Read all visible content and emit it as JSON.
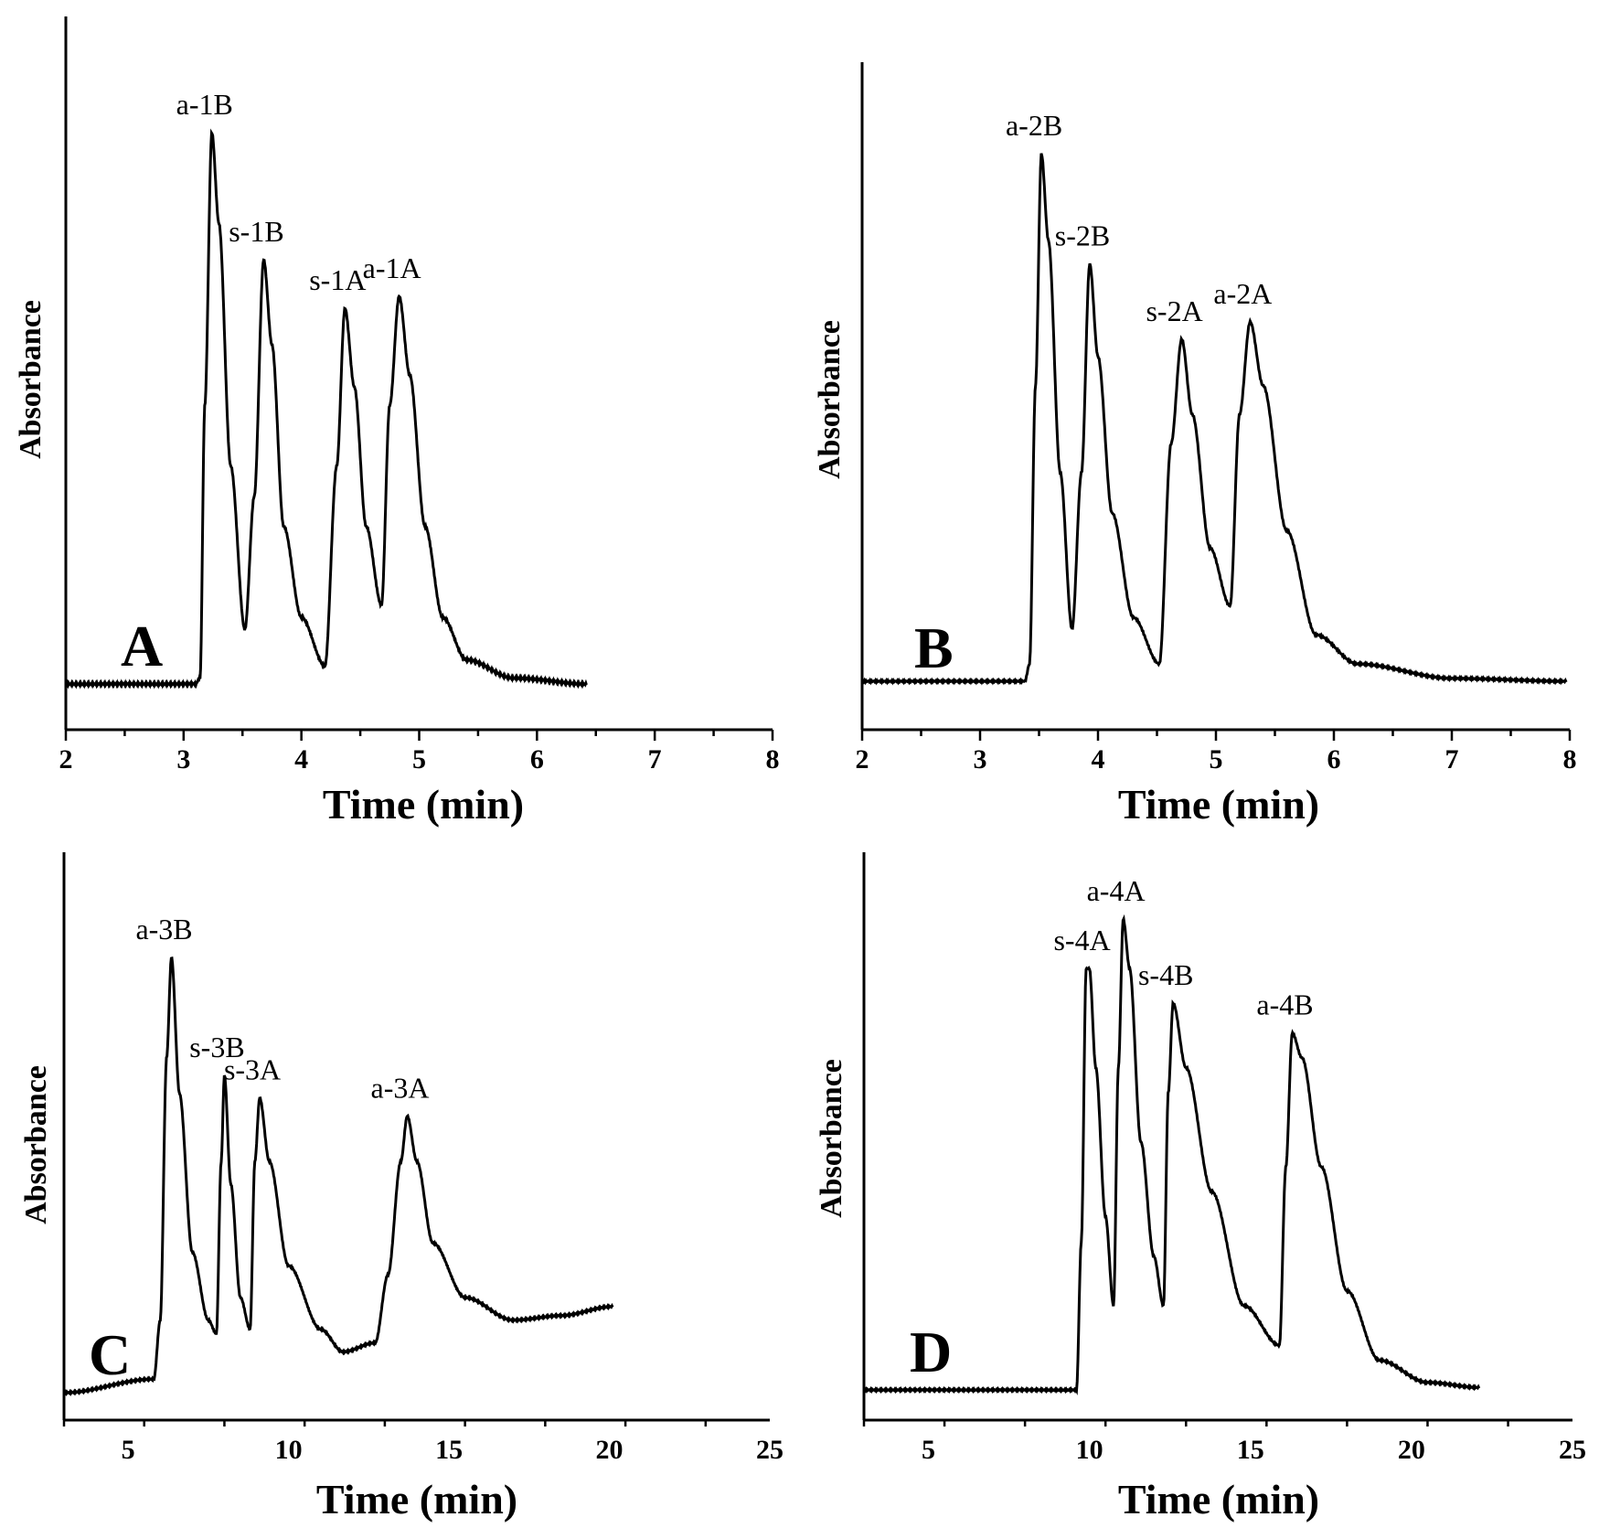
{
  "chart_data": [
    {
      "panel": "A",
      "type": "line",
      "xlabel": "Time (min)",
      "ylabel": "Absorbance",
      "xlim": [
        2,
        8
      ],
      "xticks": [
        2,
        3,
        4,
        5,
        6,
        7,
        8
      ],
      "ylim": [
        0,
        1
      ],
      "x_end": 6.42,
      "baseline": 0.09,
      "segments": [
        {
          "t": 2.0,
          "v": 0.09
        },
        {
          "t": 3.1,
          "v": 0.09
        },
        {
          "t": 3.14,
          "v": 0.1
        },
        {
          "t": 3.18,
          "v": 0.55
        },
        {
          "t": 3.24,
          "v": 1.0
        },
        {
          "t": 3.3,
          "v": 0.85
        },
        {
          "t": 3.4,
          "v": 0.45
        },
        {
          "t": 3.52,
          "v": 0.18
        },
        {
          "t": 3.6,
          "v": 0.4
        },
        {
          "t": 3.68,
          "v": 0.79
        },
        {
          "t": 3.75,
          "v": 0.65
        },
        {
          "t": 3.85,
          "v": 0.35
        },
        {
          "t": 4.0,
          "v": 0.2
        },
        {
          "t": 4.2,
          "v": 0.12
        },
        {
          "t": 4.3,
          "v": 0.45
        },
        {
          "t": 4.37,
          "v": 0.71
        },
        {
          "t": 4.45,
          "v": 0.58
        },
        {
          "t": 4.55,
          "v": 0.35
        },
        {
          "t": 4.68,
          "v": 0.22
        },
        {
          "t": 4.75,
          "v": 0.55
        },
        {
          "t": 4.83,
          "v": 0.73
        },
        {
          "t": 4.92,
          "v": 0.6
        },
        {
          "t": 5.05,
          "v": 0.35
        },
        {
          "t": 5.2,
          "v": 0.2
        },
        {
          "t": 5.4,
          "v": 0.13
        },
        {
          "t": 5.8,
          "v": 0.1
        },
        {
          "t": 6.42,
          "v": 0.09
        }
      ],
      "peaks": [
        {
          "label": "a-1B",
          "t": 3.24,
          "v": 1.0
        },
        {
          "label": "s-1B",
          "t": 3.68,
          "v": 0.79
        },
        {
          "label": "s-1A",
          "t": 4.37,
          "v": 0.71
        },
        {
          "label": "a-1A",
          "t": 4.83,
          "v": 0.73
        }
      ]
    },
    {
      "panel": "B",
      "type": "line",
      "xlabel": "Time (min)",
      "ylabel": "Absorbance",
      "xlim": [
        2,
        8
      ],
      "xticks": [
        2,
        3,
        4,
        5,
        6,
        7,
        8
      ],
      "ylim": [
        0,
        1
      ],
      "x_end": 7.97,
      "baseline": 0.09,
      "segments": [
        {
          "t": 2.0,
          "v": 0.09
        },
        {
          "t": 3.38,
          "v": 0.09
        },
        {
          "t": 3.42,
          "v": 0.12
        },
        {
          "t": 3.47,
          "v": 0.6
        },
        {
          "t": 3.52,
          "v": 1.0
        },
        {
          "t": 3.58,
          "v": 0.85
        },
        {
          "t": 3.68,
          "v": 0.45
        },
        {
          "t": 3.78,
          "v": 0.18
        },
        {
          "t": 3.86,
          "v": 0.45
        },
        {
          "t": 3.93,
          "v": 0.81
        },
        {
          "t": 4.0,
          "v": 0.65
        },
        {
          "t": 4.12,
          "v": 0.38
        },
        {
          "t": 4.3,
          "v": 0.2
        },
        {
          "t": 4.52,
          "v": 0.12
        },
        {
          "t": 4.62,
          "v": 0.5
        },
        {
          "t": 4.71,
          "v": 0.68
        },
        {
          "t": 4.8,
          "v": 0.55
        },
        {
          "t": 4.95,
          "v": 0.32
        },
        {
          "t": 5.12,
          "v": 0.22
        },
        {
          "t": 5.2,
          "v": 0.55
        },
        {
          "t": 5.29,
          "v": 0.71
        },
        {
          "t": 5.4,
          "v": 0.6
        },
        {
          "t": 5.6,
          "v": 0.35
        },
        {
          "t": 5.85,
          "v": 0.17
        },
        {
          "t": 6.2,
          "v": 0.12
        },
        {
          "t": 7.0,
          "v": 0.095
        },
        {
          "t": 7.97,
          "v": 0.09
        }
      ],
      "peaks": [
        {
          "label": "a-2B",
          "t": 3.52,
          "v": 1.0
        },
        {
          "label": "s-2B",
          "t": 3.93,
          "v": 0.81
        },
        {
          "label": "s-2A",
          "t": 4.71,
          "v": 0.68
        },
        {
          "label": "a-2A",
          "t": 5.29,
          "v": 0.71
        }
      ]
    },
    {
      "panel": "C",
      "type": "line",
      "xlabel": "Time (min)",
      "ylabel": "Absorbance",
      "xlim": [
        3,
        25
      ],
      "xticks": [
        5,
        10,
        15,
        20,
        25
      ],
      "ylim": [
        0,
        1
      ],
      "x_end": 20.1,
      "baseline": 0.04,
      "segments": [
        {
          "t": 3.0,
          "v": 0.04
        },
        {
          "t": 5.8,
          "v": 0.07
        },
        {
          "t": 6.0,
          "v": 0.2
        },
        {
          "t": 6.2,
          "v": 0.78
        },
        {
          "t": 6.35,
          "v": 1.0
        },
        {
          "t": 6.6,
          "v": 0.7
        },
        {
          "t": 7.0,
          "v": 0.35
        },
        {
          "t": 7.5,
          "v": 0.2
        },
        {
          "t": 7.75,
          "v": 0.17
        },
        {
          "t": 7.9,
          "v": 0.55
        },
        {
          "t": 8.0,
          "v": 0.74
        },
        {
          "t": 8.2,
          "v": 0.5
        },
        {
          "t": 8.5,
          "v": 0.25
        },
        {
          "t": 8.8,
          "v": 0.18
        },
        {
          "t": 8.95,
          "v": 0.55
        },
        {
          "t": 9.1,
          "v": 0.69
        },
        {
          "t": 9.4,
          "v": 0.55
        },
        {
          "t": 10.0,
          "v": 0.32
        },
        {
          "t": 11.0,
          "v": 0.18
        },
        {
          "t": 11.7,
          "v": 0.13
        },
        {
          "t": 12.7,
          "v": 0.15
        },
        {
          "t": 13.1,
          "v": 0.3
        },
        {
          "t": 13.5,
          "v": 0.55
        },
        {
          "t": 13.7,
          "v": 0.65
        },
        {
          "t": 14.0,
          "v": 0.55
        },
        {
          "t": 14.5,
          "v": 0.37
        },
        {
          "t": 15.5,
          "v": 0.25
        },
        {
          "t": 17.0,
          "v": 0.2
        },
        {
          "t": 18.5,
          "v": 0.21
        },
        {
          "t": 20.1,
          "v": 0.23
        }
      ],
      "peaks": [
        {
          "label": "a-3B",
          "t": 6.35,
          "v": 1.0
        },
        {
          "label": "s-3B",
          "t": 8.0,
          "v": 0.74
        },
        {
          "label": "s-3A",
          "t": 9.1,
          "v": 0.69
        },
        {
          "label": "a-3A",
          "t": 13.7,
          "v": 0.65
        }
      ]
    },
    {
      "panel": "D",
      "type": "line",
      "xlabel": "Time (min)",
      "ylabel": "Absorbance",
      "xlim": [
        3,
        25
      ],
      "xticks": [
        5,
        10,
        15,
        20,
        25
      ],
      "ylim": [
        0,
        1
      ],
      "x_end": 22.1,
      "baseline": 0.05,
      "segments": [
        {
          "t": 3.0,
          "v": 0.05
        },
        {
          "t": 9.6,
          "v": 0.05
        },
        {
          "t": 9.75,
          "v": 0.35
        },
        {
          "t": 9.9,
          "v": 0.9
        },
        {
          "t": 10.0,
          "v": 0.9
        },
        {
          "t": 10.2,
          "v": 0.7
        },
        {
          "t": 10.5,
          "v": 0.4
        },
        {
          "t": 10.75,
          "v": 0.22
        },
        {
          "t": 10.9,
          "v": 0.7
        },
        {
          "t": 11.05,
          "v": 1.0
        },
        {
          "t": 11.25,
          "v": 0.9
        },
        {
          "t": 11.6,
          "v": 0.55
        },
        {
          "t": 12.0,
          "v": 0.32
        },
        {
          "t": 12.3,
          "v": 0.22
        },
        {
          "t": 12.45,
          "v": 0.65
        },
        {
          "t": 12.6,
          "v": 0.83
        },
        {
          "t": 13.0,
          "v": 0.7
        },
        {
          "t": 13.8,
          "v": 0.45
        },
        {
          "t": 14.8,
          "v": 0.22
        },
        {
          "t": 15.9,
          "v": 0.14
        },
        {
          "t": 16.1,
          "v": 0.5
        },
        {
          "t": 16.3,
          "v": 0.77
        },
        {
          "t": 16.6,
          "v": 0.72
        },
        {
          "t": 17.2,
          "v": 0.5
        },
        {
          "t": 18.0,
          "v": 0.25
        },
        {
          "t": 19.0,
          "v": 0.11
        },
        {
          "t": 20.5,
          "v": 0.065
        },
        {
          "t": 22.1,
          "v": 0.055
        }
      ],
      "peaks": [
        {
          "label": "s-4A",
          "t": 10.0,
          "v": 0.9
        },
        {
          "label": "a-4A",
          "t": 11.05,
          "v": 1.0
        },
        {
          "label": "s-4B",
          "t": 12.6,
          "v": 0.83
        },
        {
          "label": "a-4B",
          "t": 16.3,
          "v": 0.77
        }
      ]
    }
  ]
}
